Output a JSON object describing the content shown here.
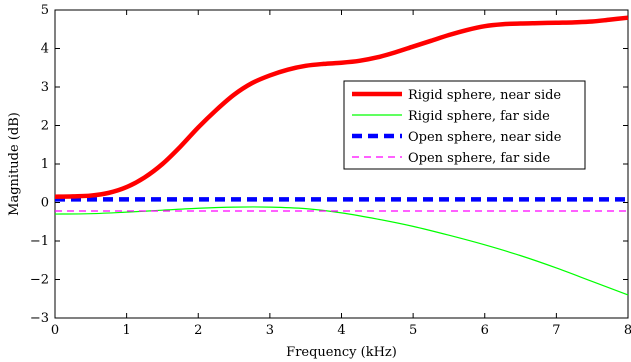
{
  "chart_data": {
    "type": "line",
    "title": "",
    "xlabel": "Frequency (kHz)",
    "ylabel": "Magnitude (dB)",
    "xlim": [
      0,
      8
    ],
    "ylim": [
      -3,
      5
    ],
    "xticks": [
      0,
      1,
      2,
      3,
      4,
      5,
      6,
      7,
      8
    ],
    "yticks": [
      -3,
      -2,
      -1,
      0,
      1,
      2,
      3,
      4,
      5
    ],
    "ytick_labels": [
      "−3",
      "−2",
      "−1",
      "0",
      "1",
      "2",
      "3",
      "4",
      "5"
    ],
    "grid": false,
    "legend_position": "center-right",
    "series": [
      {
        "name": "Rigid sphere, near side",
        "color": "#ff0000",
        "style": "solid-thick",
        "x": [
          0,
          0.25,
          0.5,
          0.75,
          1,
          1.25,
          1.5,
          1.75,
          2,
          2.25,
          2.5,
          2.75,
          3,
          3.25,
          3.5,
          3.75,
          4,
          4.25,
          4.5,
          4.75,
          5,
          5.25,
          5.5,
          5.75,
          6,
          6.25,
          6.5,
          6.75,
          7,
          7.25,
          7.5,
          7.75,
          8
        ],
        "y": [
          0.15,
          0.16,
          0.18,
          0.25,
          0.4,
          0.65,
          1.0,
          1.45,
          1.95,
          2.4,
          2.8,
          3.1,
          3.3,
          3.45,
          3.55,
          3.6,
          3.63,
          3.68,
          3.77,
          3.9,
          4.05,
          4.2,
          4.35,
          4.48,
          4.58,
          4.63,
          4.65,
          4.66,
          4.67,
          4.68,
          4.7,
          4.75,
          4.8
        ]
      },
      {
        "name": "Rigid sphere, far side",
        "color": "#00ff00",
        "style": "solid-thin",
        "x": [
          0,
          0.5,
          1,
          1.5,
          2,
          2.5,
          3,
          3.5,
          4,
          4.5,
          5,
          5.5,
          6,
          6.5,
          7,
          7.5,
          8
        ],
        "y": [
          -0.3,
          -0.29,
          -0.25,
          -0.2,
          -0.15,
          -0.12,
          -0.12,
          -0.16,
          -0.27,
          -0.43,
          -0.62,
          -0.85,
          -1.1,
          -1.38,
          -1.7,
          -2.05,
          -2.4
        ]
      },
      {
        "name": "Open sphere, near side",
        "color": "#0000ff",
        "style": "dashed-thick",
        "x": [
          0,
          8
        ],
        "y": [
          0.08,
          0.08
        ]
      },
      {
        "name": "Open sphere, far side",
        "color": "#ff00ff",
        "style": "dashed-thin",
        "x": [
          0,
          8
        ],
        "y": [
          -0.22,
          -0.22
        ]
      }
    ]
  }
}
